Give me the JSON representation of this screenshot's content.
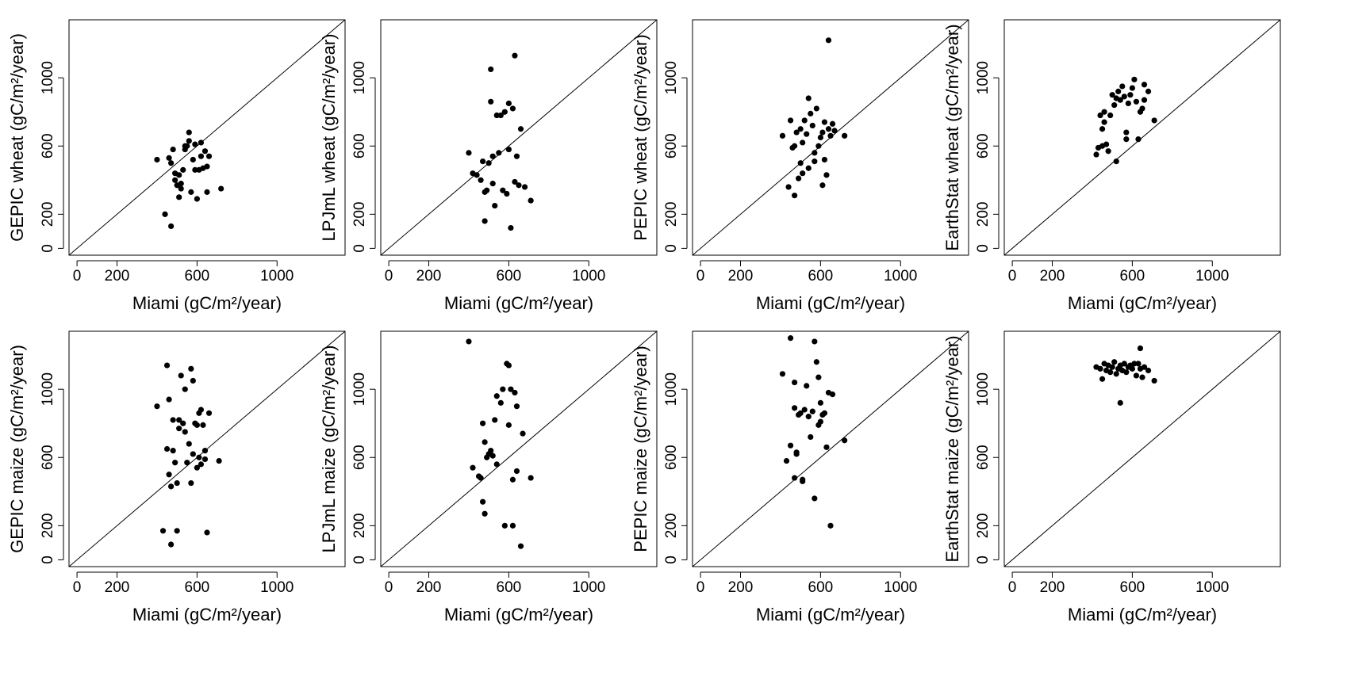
{
  "chart_data": [
    {
      "type": "scatter",
      "xlabel": "Miami (gC/m²/year)",
      "ylabel": "GEPIC wheat (gC/m²/year)",
      "xticks": [
        0,
        200,
        600,
        1000
      ],
      "yticks": [
        0,
        200,
        600,
        1000
      ],
      "xlim": [
        -40,
        1340
      ],
      "ylim": [
        -40,
        1340
      ],
      "reference_line": "y = x",
      "points": [
        [
          400,
          520
        ],
        [
          440,
          200
        ],
        [
          460,
          530
        ],
        [
          470,
          500
        ],
        [
          480,
          580
        ],
        [
          470,
          130
        ],
        [
          490,
          440
        ],
        [
          490,
          400
        ],
        [
          500,
          370
        ],
        [
          510,
          430
        ],
        [
          510,
          300
        ],
        [
          520,
          380
        ],
        [
          520,
          350
        ],
        [
          530,
          460
        ],
        [
          540,
          580
        ],
        [
          540,
          600
        ],
        [
          550,
          600
        ],
        [
          560,
          630
        ],
        [
          560,
          680
        ],
        [
          570,
          330
        ],
        [
          580,
          520
        ],
        [
          590,
          460
        ],
        [
          590,
          610
        ],
        [
          600,
          290
        ],
        [
          610,
          460
        ],
        [
          620,
          540
        ],
        [
          620,
          620
        ],
        [
          630,
          470
        ],
        [
          640,
          570
        ],
        [
          650,
          330
        ],
        [
          650,
          480
        ],
        [
          660,
          540
        ],
        [
          720,
          350
        ]
      ]
    },
    {
      "type": "scatter",
      "xlabel": "Miami (gC/m²/year)",
      "ylabel": "LPJmL wheat (gC/m²/year)",
      "xticks": [
        0,
        200,
        600,
        1000
      ],
      "yticks": [
        0,
        200,
        600,
        1000
      ],
      "xlim": [
        -40,
        1340
      ],
      "ylim": [
        -40,
        1340
      ],
      "reference_line": "y = x",
      "points": [
        [
          400,
          560
        ],
        [
          420,
          440
        ],
        [
          440,
          430
        ],
        [
          460,
          400
        ],
        [
          470,
          510
        ],
        [
          480,
          330
        ],
        [
          480,
          160
        ],
        [
          490,
          340
        ],
        [
          500,
          500
        ],
        [
          510,
          1050
        ],
        [
          510,
          860
        ],
        [
          520,
          380
        ],
        [
          520,
          540
        ],
        [
          530,
          250
        ],
        [
          540,
          780
        ],
        [
          550,
          560
        ],
        [
          560,
          780
        ],
        [
          570,
          340
        ],
        [
          580,
          800
        ],
        [
          590,
          320
        ],
        [
          600,
          850
        ],
        [
          600,
          580
        ],
        [
          610,
          120
        ],
        [
          620,
          820
        ],
        [
          630,
          1130
        ],
        [
          630,
          390
        ],
        [
          640,
          540
        ],
        [
          650,
          370
        ],
        [
          660,
          700
        ],
        [
          680,
          360
        ],
        [
          710,
          280
        ]
      ]
    },
    {
      "type": "scatter",
      "xlabel": "Miami (gC/m²/year)",
      "ylabel": "PEPIC wheat (gC/m²/year)",
      "xticks": [
        0,
        200,
        600,
        1000
      ],
      "yticks": [
        0,
        200,
        600,
        1000
      ],
      "xlim": [
        -40,
        1340
      ],
      "ylim": [
        -40,
        1340
      ],
      "reference_line": "y = x",
      "points": [
        [
          410,
          660
        ],
        [
          440,
          360
        ],
        [
          450,
          750
        ],
        [
          460,
          590
        ],
        [
          470,
          310
        ],
        [
          470,
          600
        ],
        [
          480,
          680
        ],
        [
          490,
          410
        ],
        [
          500,
          700
        ],
        [
          500,
          500
        ],
        [
          510,
          620
        ],
        [
          510,
          440
        ],
        [
          520,
          750
        ],
        [
          530,
          670
        ],
        [
          540,
          880
        ],
        [
          540,
          470
        ],
        [
          550,
          790
        ],
        [
          560,
          720
        ],
        [
          570,
          560
        ],
        [
          570,
          510
        ],
        [
          580,
          820
        ],
        [
          590,
          600
        ],
        [
          600,
          650
        ],
        [
          610,
          370
        ],
        [
          610,
          680
        ],
        [
          620,
          520
        ],
        [
          620,
          740
        ],
        [
          630,
          430
        ],
        [
          640,
          1220
        ],
        [
          640,
          700
        ],
        [
          650,
          660
        ],
        [
          660,
          730
        ],
        [
          670,
          690
        ],
        [
          720,
          660
        ]
      ]
    },
    {
      "type": "scatter",
      "xlabel": "Miami (gC/m²/year)",
      "ylabel": "EarthStat wheat (gC/m²/year)",
      "xticks": [
        0,
        200,
        600,
        1000
      ],
      "yticks": [
        0,
        200,
        600,
        1000
      ],
      "xlim": [
        -40,
        1340
      ],
      "ylim": [
        -40,
        1340
      ],
      "reference_line": "y = x",
      "points": [
        [
          420,
          550
        ],
        [
          430,
          590
        ],
        [
          440,
          780
        ],
        [
          450,
          700
        ],
        [
          450,
          600
        ],
        [
          460,
          740
        ],
        [
          460,
          800
        ],
        [
          470,
          610
        ],
        [
          480,
          570
        ],
        [
          490,
          780
        ],
        [
          500,
          900
        ],
        [
          510,
          840
        ],
        [
          520,
          880
        ],
        [
          520,
          510
        ],
        [
          530,
          920
        ],
        [
          540,
          870
        ],
        [
          550,
          950
        ],
        [
          560,
          890
        ],
        [
          570,
          680
        ],
        [
          570,
          640
        ],
        [
          580,
          850
        ],
        [
          590,
          900
        ],
        [
          600,
          940
        ],
        [
          610,
          990
        ],
        [
          620,
          860
        ],
        [
          630,
          640
        ],
        [
          640,
          800
        ],
        [
          650,
          820
        ],
        [
          660,
          960
        ],
        [
          660,
          870
        ],
        [
          680,
          920
        ],
        [
          710,
          750
        ]
      ]
    },
    {
      "type": "scatter",
      "xlabel": "Miami (gC/m²/year)",
      "ylabel": "GEPIC maize (gC/m²/year)",
      "xticks": [
        0,
        200,
        600,
        1000
      ],
      "yticks": [
        0,
        200,
        600,
        1000
      ],
      "xlim": [
        -40,
        1340
      ],
      "ylim": [
        -40,
        1340
      ],
      "reference_line": "y = x",
      "points": [
        [
          400,
          900
        ],
        [
          430,
          170
        ],
        [
          450,
          1140
        ],
        [
          450,
          650
        ],
        [
          460,
          940
        ],
        [
          460,
          500
        ],
        [
          470,
          90
        ],
        [
          470,
          430
        ],
        [
          480,
          820
        ],
        [
          480,
          640
        ],
        [
          490,
          570
        ],
        [
          500,
          170
        ],
        [
          500,
          450
        ],
        [
          510,
          820
        ],
        [
          510,
          770
        ],
        [
          520,
          1080
        ],
        [
          530,
          800
        ],
        [
          540,
          1000
        ],
        [
          540,
          750
        ],
        [
          550,
          570
        ],
        [
          560,
          680
        ],
        [
          570,
          450
        ],
        [
          570,
          1120
        ],
        [
          580,
          1050
        ],
        [
          580,
          620
        ],
        [
          590,
          800
        ],
        [
          600,
          790
        ],
        [
          600,
          540
        ],
        [
          610,
          860
        ],
        [
          610,
          600
        ],
        [
          620,
          560
        ],
        [
          620,
          880
        ],
        [
          630,
          790
        ],
        [
          640,
          640
        ],
        [
          640,
          590
        ],
        [
          650,
          160
        ],
        [
          660,
          860
        ],
        [
          710,
          580
        ]
      ]
    },
    {
      "type": "scatter",
      "xlabel": "Miami (gC/m²/year)",
      "ylabel": "LPJmL maize (gC/m²/year)",
      "xticks": [
        0,
        200,
        600,
        1000
      ],
      "yticks": [
        0,
        200,
        600,
        1000
      ],
      "xlim": [
        -40,
        1340
      ],
      "ylim": [
        -40,
        1340
      ],
      "reference_line": "y = x",
      "points": [
        [
          400,
          1280
        ],
        [
          420,
          540
        ],
        [
          450,
          490
        ],
        [
          460,
          480
        ],
        [
          470,
          800
        ],
        [
          470,
          340
        ],
        [
          480,
          270
        ],
        [
          480,
          690
        ],
        [
          490,
          600
        ],
        [
          500,
          620
        ],
        [
          510,
          640
        ],
        [
          520,
          610
        ],
        [
          530,
          820
        ],
        [
          540,
          960
        ],
        [
          540,
          560
        ],
        [
          560,
          920
        ],
        [
          570,
          1000
        ],
        [
          580,
          200
        ],
        [
          590,
          1150
        ],
        [
          600,
          1140
        ],
        [
          600,
          790
        ],
        [
          610,
          1000
        ],
        [
          620,
          200
        ],
        [
          620,
          470
        ],
        [
          630,
          980
        ],
        [
          640,
          900
        ],
        [
          640,
          520
        ],
        [
          660,
          80
        ],
        [
          670,
          740
        ],
        [
          710,
          480
        ]
      ]
    },
    {
      "type": "scatter",
      "xlabel": "Miami (gC/m²/year)",
      "ylabel": "PEPIC maize (gC/m²/year)",
      "xticks": [
        0,
        200,
        600,
        1000
      ],
      "yticks": [
        0,
        200,
        600,
        1000
      ],
      "xlim": [
        -40,
        1340
      ],
      "ylim": [
        -40,
        1340
      ],
      "reference_line": "y = x",
      "points": [
        [
          410,
          1090
        ],
        [
          430,
          580
        ],
        [
          450,
          1300
        ],
        [
          450,
          670
        ],
        [
          470,
          1040
        ],
        [
          470,
          890
        ],
        [
          470,
          480
        ],
        [
          480,
          630
        ],
        [
          480,
          620
        ],
        [
          490,
          850
        ],
        [
          500,
          860
        ],
        [
          510,
          470
        ],
        [
          510,
          460
        ],
        [
          520,
          880
        ],
        [
          530,
          1020
        ],
        [
          540,
          840
        ],
        [
          550,
          720
        ],
        [
          560,
          870
        ],
        [
          570,
          1280
        ],
        [
          570,
          360
        ],
        [
          580,
          1160
        ],
        [
          590,
          1070
        ],
        [
          590,
          790
        ],
        [
          600,
          810
        ],
        [
          600,
          920
        ],
        [
          610,
          850
        ],
        [
          620,
          860
        ],
        [
          630,
          660
        ],
        [
          640,
          980
        ],
        [
          650,
          200
        ],
        [
          660,
          970
        ],
        [
          720,
          700
        ]
      ]
    },
    {
      "type": "scatter",
      "xlabel": "Miami (gC/m²/year)",
      "ylabel": "EarthStat maize (gC/m²/year)",
      "xticks": [
        0,
        200,
        600,
        1000
      ],
      "yticks": [
        0,
        200,
        600,
        1000
      ],
      "xlim": [
        -40,
        1340
      ],
      "ylim": [
        -40,
        1340
      ],
      "reference_line": "y = x",
      "points": [
        [
          420,
          1130
        ],
        [
          440,
          1120
        ],
        [
          450,
          1060
        ],
        [
          460,
          1150
        ],
        [
          470,
          1110
        ],
        [
          480,
          1140
        ],
        [
          490,
          1100
        ],
        [
          500,
          1130
        ],
        [
          510,
          1160
        ],
        [
          520,
          1090
        ],
        [
          530,
          1120
        ],
        [
          540,
          920
        ],
        [
          540,
          1140
        ],
        [
          550,
          1110
        ],
        [
          560,
          1150
        ],
        [
          570,
          1100
        ],
        [
          580,
          1130
        ],
        [
          590,
          1140
        ],
        [
          600,
          1120
        ],
        [
          610,
          1150
        ],
        [
          620,
          1080
        ],
        [
          630,
          1150
        ],
        [
          640,
          1240
        ],
        [
          640,
          1120
        ],
        [
          650,
          1070
        ],
        [
          660,
          1130
        ],
        [
          680,
          1110
        ],
        [
          710,
          1050
        ]
      ]
    }
  ]
}
